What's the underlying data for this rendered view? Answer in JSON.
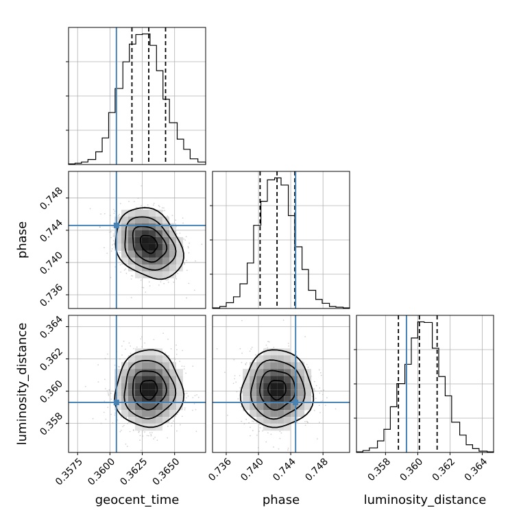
{
  "chart_data": {
    "type": "corner",
    "parameters": [
      "geocent_time",
      "phase",
      "luminosity_distance"
    ],
    "truth_color": "#4682b4",
    "truths": [
      0.3605,
      0.7446,
      0.3593
    ],
    "ranges": [
      [
        0.3568,
        0.3674
      ],
      [
        0.7343,
        0.7513
      ],
      [
        0.3562,
        0.3647
      ]
    ],
    "ticks": [
      [
        "0.3575",
        "0.3600",
        "0.3625",
        "0.3650"
      ],
      [
        "0.736",
        "0.740",
        "0.744",
        "0.748"
      ],
      [
        "0.358",
        "0.360",
        "0.362",
        "0.364"
      ]
    ],
    "quantiles": [
      [
        0.3617,
        0.363,
        0.3643
      ],
      [
        0.7402,
        0.7423,
        0.7445
      ],
      [
        0.3588,
        0.3601,
        0.3612
      ]
    ],
    "hist_bins": [
      [
        0.3568,
        0.3573,
        0.3578,
        0.3583,
        0.3589,
        0.3594,
        0.3599,
        0.3604,
        0.361,
        0.3615,
        0.362,
        0.3625,
        0.3631,
        0.3636,
        0.3641,
        0.3646,
        0.3652,
        0.3657,
        0.3662,
        0.3668,
        0.3674
      ],
      [
        0.7343,
        0.7352,
        0.736,
        0.7369,
        0.7377,
        0.7386,
        0.7394,
        0.7403,
        0.7411,
        0.742,
        0.7428,
        0.7437,
        0.7445,
        0.7454,
        0.7462,
        0.7471,
        0.7479,
        0.7488,
        0.7496,
        0.7505,
        0.7513
      ],
      [
        0.3562,
        0.3566,
        0.357,
        0.3575,
        0.3579,
        0.3583,
        0.3587,
        0.3592,
        0.3596,
        0.36,
        0.3604,
        0.3609,
        0.3613,
        0.3617,
        0.3621,
        0.3626,
        0.363,
        0.3634,
        0.3638,
        0.3643,
        0.3647
      ]
    ],
    "hist_counts": [
      [
        1,
        2,
        4,
        8,
        20,
        42,
        82,
        120,
        162,
        190,
        205,
        206,
        188,
        148,
        103,
        66,
        40,
        24,
        9,
        4
      ],
      [
        1,
        3,
        9,
        18,
        38,
        70,
        128,
        165,
        198,
        201,
        190,
        143,
        95,
        60,
        28,
        14,
        8,
        3,
        2,
        1
      ],
      [
        1,
        3,
        7,
        18,
        36,
        71,
        107,
        137,
        178,
        203,
        202,
        162,
        118,
        88,
        47,
        27,
        12,
        6,
        2,
        1
      ]
    ],
    "pair_means": [
      {
        "row": 1,
        "col": 0,
        "x": 0.363,
        "y": 0.7423,
        "sx": 0.0013,
        "sy": 0.0022,
        "rho": -0.25
      },
      {
        "row": 2,
        "col": 0,
        "x": 0.363,
        "y": 0.3601,
        "sx": 0.0013,
        "sy": 0.0012,
        "rho": 0.0
      },
      {
        "row": 2,
        "col": 1,
        "x": 0.7423,
        "y": 0.3601,
        "sx": 0.0022,
        "sy": 0.0012,
        "rho": 0.0
      }
    ]
  }
}
